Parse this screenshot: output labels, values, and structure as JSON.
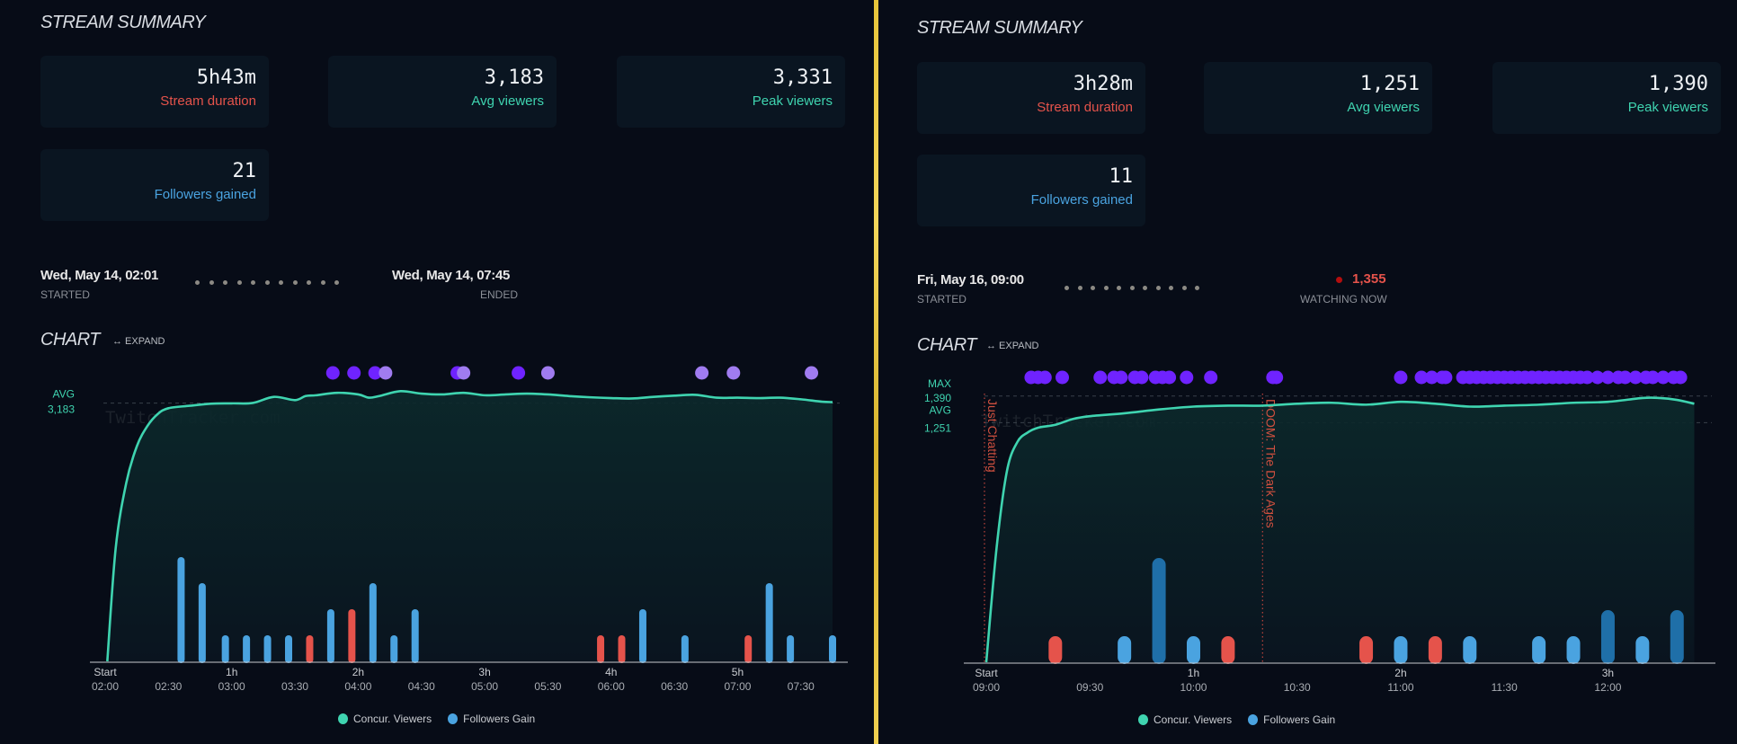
{
  "colors": {
    "accent_teal": "#3fd4b0",
    "followers_blue": "#4aa3e0",
    "followers_dark_blue": "#1f6fa8",
    "loss_red": "#e5534b",
    "raid_purple": "#6f23ff",
    "raid_light_purple": "#a07cf0",
    "divider_gold": "#e8c53a"
  },
  "left": {
    "section_title": "STREAM SUMMARY",
    "cards": [
      {
        "value": "5h43m",
        "label": "Stream duration"
      },
      {
        "value": "3,183",
        "label": "Avg viewers"
      },
      {
        "value": "3,331",
        "label": "Peak viewers"
      },
      {
        "value": "21",
        "label": "Followers gained"
      }
    ],
    "started": {
      "value": "Wed, May 14, 02:01",
      "label": "STARTED"
    },
    "ended": {
      "value": "Wed, May 14, 07:45",
      "label": "ENDED"
    },
    "chart_title": "CHART",
    "expand_label": "↔ EXPAND",
    "watermark": "TwitchTracker.com",
    "ref_labels": [
      {
        "name": "AVG",
        "value": "3,183"
      }
    ],
    "legend": [
      {
        "label": "Concur. Viewers",
        "icon": "circle-teal"
      },
      {
        "label": "Followers Gain",
        "icon": "circle-blue"
      }
    ]
  },
  "right": {
    "section_title": "STREAM SUMMARY",
    "cards": [
      {
        "value": "3h28m",
        "label": "Stream duration"
      },
      {
        "value": "1,251",
        "label": "Avg viewers"
      },
      {
        "value": "1,390",
        "label": "Peak viewers"
      },
      {
        "value": "11",
        "label": "Followers gained"
      }
    ],
    "started": {
      "value": "Fri, May 16, 09:00",
      "label": "STARTED"
    },
    "live": {
      "value": "1,355",
      "label": "WATCHING NOW"
    },
    "chart_title": "CHART",
    "expand_label": "↔ EXPAND",
    "watermark": "TwitchTracker.com",
    "ref_labels": [
      {
        "name": "MAX",
        "value": "1,390"
      },
      {
        "name": "AVG",
        "value": "1,251"
      }
    ],
    "games": [
      "Just Chatting",
      "DOOM: The Dark Ages"
    ],
    "legend": [
      {
        "label": "Concur. Viewers",
        "icon": "circle-teal"
      },
      {
        "label": "Followers Gain",
        "icon": "circle-blue"
      }
    ]
  },
  "chart_data": [
    {
      "type": "line",
      "title": "CHART",
      "x_unit": "minutes since 02:00",
      "xlim": [
        0,
        345
      ],
      "ylim": [
        0,
        3500
      ],
      "x_ticks_top": [
        "Start",
        "1h",
        "2h",
        "3h",
        "4h",
        "5h"
      ],
      "x_ticks_top_at": [
        0,
        60,
        120,
        180,
        240,
        300
      ],
      "x_ticks_bottom": [
        "02:00",
        "02:30",
        "03:00",
        "03:30",
        "04:00",
        "04:30",
        "05:00",
        "05:30",
        "06:00",
        "06:30",
        "07:00",
        "07:30"
      ],
      "x_ticks_bottom_at": [
        0,
        30,
        60,
        90,
        120,
        150,
        180,
        210,
        240,
        270,
        300,
        330
      ],
      "reference_lines": [
        {
          "name": "AVG",
          "value": 3183
        }
      ],
      "series": [
        {
          "name": "Concur. Viewers",
          "x": [
            1,
            5,
            10,
            15,
            20,
            25,
            30,
            40,
            50,
            60,
            70,
            80,
            90,
            95,
            100,
            110,
            120,
            125,
            130,
            140,
            150,
            160,
            170,
            180,
            190,
            200,
            210,
            220,
            230,
            240,
            250,
            260,
            270,
            280,
            290,
            300,
            310,
            320,
            330,
            340,
            345
          ],
          "y": [
            0,
            1400,
            2200,
            2650,
            2900,
            3050,
            3120,
            3150,
            3175,
            3180,
            3185,
            3260,
            3220,
            3270,
            3280,
            3310,
            3290,
            3250,
            3270,
            3330,
            3300,
            3290,
            3310,
            3280,
            3290,
            3300,
            3290,
            3270,
            3255,
            3245,
            3240,
            3260,
            3275,
            3285,
            3250,
            3250,
            3245,
            3250,
            3230,
            3200,
            3195
          ]
        },
        {
          "name": "Followers Gain",
          "type": "bar",
          "x": [
            36,
            46,
            57,
            67,
            77,
            87,
            97,
            107,
            117,
            127,
            137,
            147,
            235,
            245,
            255,
            275,
            305,
            315,
            325,
            345
          ],
          "y": [
            4,
            3,
            1,
            1,
            1,
            1,
            -1,
            2,
            -2,
            3,
            1,
            2,
            -1,
            -1,
            2,
            1,
            -1,
            3,
            1,
            1
          ]
        }
      ],
      "raids": [
        {
          "x": 108,
          "kind": "dark"
        },
        {
          "x": 118,
          "kind": "dark"
        },
        {
          "x": 128,
          "kind": "dark"
        },
        {
          "x": 133,
          "kind": "light"
        },
        {
          "x": 167,
          "kind": "dark"
        },
        {
          "x": 170,
          "kind": "light"
        },
        {
          "x": 196,
          "kind": "dark"
        },
        {
          "x": 210,
          "kind": "light"
        },
        {
          "x": 283,
          "kind": "light"
        },
        {
          "x": 298,
          "kind": "light"
        },
        {
          "x": 335,
          "kind": "light"
        }
      ],
      "legend": [
        "Concur. Viewers",
        "Followers Gain"
      ],
      "legend_position": "bottom"
    },
    {
      "type": "line",
      "title": "CHART",
      "x_unit": "minutes since 09:00",
      "xlim": [
        0,
        208
      ],
      "ylim": [
        0,
        1450
      ],
      "x_ticks_top": [
        "Start",
        "1h",
        "2h",
        "3h"
      ],
      "x_ticks_top_at": [
        0,
        60,
        120,
        180
      ],
      "x_ticks_bottom": [
        "09:00",
        "09:30",
        "10:00",
        "10:30",
        "11:00",
        "11:30",
        "12:00"
      ],
      "x_ticks_bottom_at": [
        0,
        30,
        60,
        90,
        120,
        150,
        180
      ],
      "reference_lines": [
        {
          "name": "MAX",
          "value": 1390
        },
        {
          "name": "AVG",
          "value": 1251
        }
      ],
      "category_markers": [
        {
          "x": 0,
          "label": "Just Chatting"
        },
        {
          "x": 80,
          "label": "DOOM: The Dark Ages"
        }
      ],
      "series": [
        {
          "name": "Concur. Viewers",
          "x": [
            0,
            3,
            6,
            9,
            12,
            15,
            20,
            25,
            30,
            40,
            50,
            60,
            70,
            80,
            90,
            100,
            110,
            120,
            130,
            140,
            150,
            160,
            170,
            180,
            190,
            195,
            200,
            205
          ],
          "y": [
            0,
            600,
            1000,
            1150,
            1200,
            1225,
            1240,
            1270,
            1285,
            1300,
            1320,
            1335,
            1340,
            1340,
            1350,
            1355,
            1345,
            1360,
            1350,
            1335,
            1340,
            1345,
            1355,
            1360,
            1380,
            1380,
            1370,
            1350
          ]
        },
        {
          "name": "Followers Gain",
          "type": "bar",
          "x": [
            20,
            40,
            50,
            60,
            70,
            110,
            120,
            130,
            140,
            160,
            170,
            180,
            190,
            200
          ],
          "y": [
            -1,
            1,
            4,
            1,
            -1,
            -1,
            1,
            -1,
            1,
            1,
            1,
            2,
            1,
            2
          ]
        }
      ],
      "raids": [
        {
          "x": 13
        },
        {
          "x": 15
        },
        {
          "x": 17
        },
        {
          "x": 22
        },
        {
          "x": 33
        },
        {
          "x": 37
        },
        {
          "x": 39
        },
        {
          "x": 43
        },
        {
          "x": 45
        },
        {
          "x": 49
        },
        {
          "x": 51
        },
        {
          "x": 53
        },
        {
          "x": 58
        },
        {
          "x": 65
        },
        {
          "x": 83
        },
        {
          "x": 84
        },
        {
          "x": 120
        },
        {
          "x": 126
        },
        {
          "x": 129
        },
        {
          "x": 132
        },
        {
          "x": 133
        },
        {
          "x": 138
        },
        {
          "x": 140
        },
        {
          "x": 142
        },
        {
          "x": 144
        },
        {
          "x": 146
        },
        {
          "x": 148
        },
        {
          "x": 150
        },
        {
          "x": 152
        },
        {
          "x": 154
        },
        {
          "x": 156
        },
        {
          "x": 158
        },
        {
          "x": 160
        },
        {
          "x": 162
        },
        {
          "x": 164
        },
        {
          "x": 166
        },
        {
          "x": 168
        },
        {
          "x": 170
        },
        {
          "x": 172
        },
        {
          "x": 174
        },
        {
          "x": 177
        },
        {
          "x": 180
        },
        {
          "x": 183
        },
        {
          "x": 185
        },
        {
          "x": 188
        },
        {
          "x": 191
        },
        {
          "x": 193
        },
        {
          "x": 196
        },
        {
          "x": 199
        },
        {
          "x": 201
        }
      ],
      "legend": [
        "Concur. Viewers",
        "Followers Gain"
      ],
      "legend_position": "bottom"
    }
  ]
}
